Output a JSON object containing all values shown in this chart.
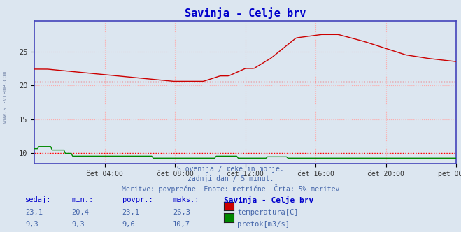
{
  "title": "Savinja - Celje brv",
  "title_color": "#0000cc",
  "bg_color": "#dce6f0",
  "plot_bg_color": "#dce6f0",
  "outer_bg": "#dce6f0",
  "grid_color": "#ffaaaa",
  "border_color": "#4444bb",
  "watermark": "www.si-vreme.com",
  "xlim": [
    0,
    288
  ],
  "ylim": [
    8.5,
    29.5
  ],
  "yticks": [
    10,
    15,
    20,
    25
  ],
  "xtick_labels": [
    "čet 04:00",
    "čet 08:00",
    "čet 12:00",
    "čet 16:00",
    "čet 20:00",
    "pet 00:00"
  ],
  "xtick_positions": [
    48,
    96,
    144,
    192,
    240,
    288
  ],
  "avg_line_temp": 20.5,
  "avg_line_flow": 10.0,
  "avg_line_color": "#ff0000",
  "temp_color": "#cc0000",
  "flow_color": "#008800",
  "footnote_lines": [
    "Slovenija / reke in morje.",
    "zadnji dan / 5 minut.",
    "Meritve: povprečne  Enote: metrične  Črta: 5% meritev"
  ],
  "footnote_color": "#4466aa",
  "table_headers": [
    "sedaj:",
    "min.:",
    "povpr.:",
    "maks.:",
    "Savinja - Celje brv"
  ],
  "table_header_color": "#0000cc",
  "table_data": [
    [
      "23,1",
      "20,4",
      "23,1",
      "26,3"
    ],
    [
      "9,3",
      "9,3",
      "9,6",
      "10,7"
    ]
  ],
  "table_data_color": "#4466aa",
  "legend_labels": [
    "temperatura[C]",
    "pretok[m3/s]"
  ],
  "legend_colors": [
    "#cc0000",
    "#008800"
  ]
}
